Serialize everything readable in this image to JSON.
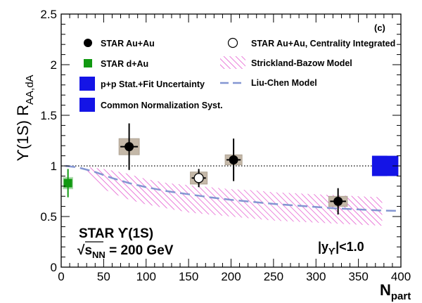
{
  "chart_data": {
    "type": "scatter",
    "panel_label": "(c)",
    "ylabel": "ϒ(1S) R",
    "ylabel_sub": "AA,dA",
    "xlabel": "N",
    "xlabel_sub": "part",
    "xlim": [
      0,
      400
    ],
    "ylim": [
      0,
      2.5
    ],
    "x_ticks": [
      0,
      50,
      100,
      150,
      200,
      250,
      300,
      350,
      400
    ],
    "y_ticks": [
      0,
      0.5,
      1,
      1.5,
      2,
      2.5
    ],
    "x_tick_labels": [
      "0",
      "50",
      "100",
      "150",
      "200",
      "250",
      "300",
      "350",
      "400"
    ],
    "y_tick_labels": [
      "0",
      "0.5",
      "1",
      "1.5",
      "2",
      "2.5"
    ],
    "reference_line_y": 1.0,
    "annotations": {
      "star_label": "STAR ϒ(1S)",
      "sqrt_symbol": "√",
      "energy_s": "s",
      "energy_sub": "NN",
      "energy_value": " = 200 GeV",
      "rapidity_prefix": "|y",
      "rapidity_sub": "ϒ",
      "rapidity_suffix": "|<1.0"
    },
    "legend": {
      "au_au": "STAR Au+Au",
      "d_au": "STAR d+Au",
      "pp_unc": "p+p Stat.+Fit Uncertainty",
      "norm_syst": "Common Normalization Syst.",
      "integrated": "STAR Au+Au, Centrality Integrated",
      "strickland": "Strickland-Bazow Model",
      "liu_chen": "Liu-Chen Model"
    },
    "series": [
      {
        "name": "STAR Au+Au",
        "points": [
          {
            "x": 80,
            "y": 1.19,
            "err_lo": 0.23,
            "err_hi": 0.23,
            "sys_x": 12,
            "sys_y": 0.08
          },
          {
            "x": 203,
            "y": 1.06,
            "err_lo": 0.21,
            "err_hi": 0.21,
            "sys_x": 10,
            "sys_y": 0.05
          },
          {
            "x": 326,
            "y": 0.65,
            "err_lo": 0.13,
            "err_hi": 0.13,
            "sys_x": 11,
            "sys_y": 0.05
          }
        ]
      },
      {
        "name": "STAR Au+Au, Centrality Integrated",
        "points": [
          {
            "x": 162,
            "y": 0.88,
            "err_lo": 0.09,
            "err_hi": 0.09,
            "sys_x": 10,
            "sys_y": 0.06
          }
        ]
      },
      {
        "name": "STAR d+Au",
        "points": [
          {
            "x": 8,
            "y": 0.83,
            "err_lo": 0.14,
            "err_hi": 0.14,
            "sys_x": 6,
            "sys_y": 0.06
          }
        ]
      },
      {
        "name": "Strickland-Bazow Model",
        "band_x": [
          30,
          50,
          75,
          100,
          125,
          150,
          175,
          200,
          225,
          250,
          275,
          300,
          325,
          350,
          378
        ],
        "band_lo": [
          0.92,
          0.77,
          0.68,
          0.62,
          0.58,
          0.54,
          0.52,
          0.5,
          0.48,
          0.46,
          0.45,
          0.44,
          0.43,
          0.42,
          0.41
        ],
        "band_hi": [
          0.99,
          0.97,
          0.93,
          0.87,
          0.83,
          0.81,
          0.79,
          0.77,
          0.76,
          0.74,
          0.73,
          0.72,
          0.71,
          0.7,
          0.69
        ]
      },
      {
        "name": "Liu-Chen Model",
        "x": [
          5,
          20,
          40,
          60,
          80,
          100,
          125,
          150,
          175,
          200,
          225,
          250,
          275,
          300,
          325,
          350,
          375,
          400
        ],
        "y": [
          1.0,
          0.985,
          0.94,
          0.88,
          0.83,
          0.79,
          0.75,
          0.72,
          0.69,
          0.665,
          0.645,
          0.625,
          0.61,
          0.595,
          0.58,
          0.57,
          0.56,
          0.555
        ]
      }
    ],
    "uncertainty_boxes": {
      "pp_stat_fit": {
        "x0": 366,
        "x1": 384,
        "y_lo": 0.9,
        "y_hi": 1.1
      },
      "common_norm": {
        "x0": 366,
        "x1": 397,
        "y_lo": 0.9,
        "y_hi": 1.1
      }
    },
    "colors": {
      "data_black": "#000000",
      "d_au_green": "#119911",
      "pp_blue": "#1414e6",
      "model_band": "#e040c8",
      "liu_chen": "#8496d2",
      "sys_box": "#c4b8a8"
    }
  }
}
